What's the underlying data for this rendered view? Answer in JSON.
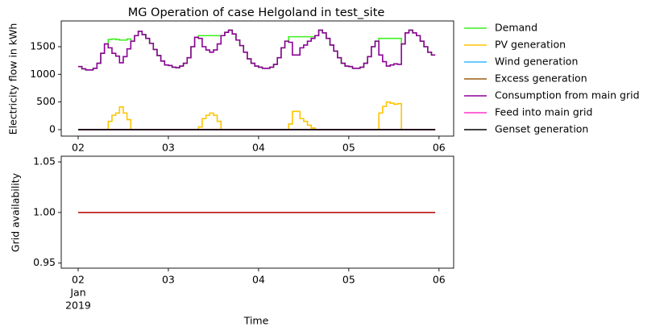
{
  "chart_data": [
    {
      "type": "line",
      "title": "MG Operation of case Helgoland in test_site",
      "ylabel": "Electricity flow in kWh",
      "x": [
        0,
        1,
        2,
        3,
        4,
        5,
        6,
        7,
        8,
        9,
        10,
        11,
        12,
        13,
        14,
        15,
        16,
        17,
        18,
        19,
        20,
        21,
        22,
        23,
        24,
        25,
        26,
        27,
        28,
        29,
        30,
        31,
        32,
        33,
        34,
        35,
        36,
        37,
        38,
        39,
        40,
        41,
        42,
        43,
        44,
        45,
        46,
        47,
        48,
        49,
        50,
        51,
        52,
        53,
        54,
        55,
        56,
        57,
        58,
        59,
        60,
        61,
        62,
        63,
        64,
        65,
        66,
        67,
        68,
        69,
        70,
        71,
        72,
        73,
        74,
        75,
        76,
        77,
        78,
        79,
        80,
        81,
        82,
        83,
        84,
        85,
        86,
        87,
        88,
        89,
        90,
        91,
        92,
        93,
        94,
        95
      ],
      "xlim": [
        -4.5,
        99.9
      ],
      "xticks": [
        {
          "value": 0,
          "label": "02"
        },
        {
          "value": 24,
          "label": "03"
        },
        {
          "value": 48,
          "label": "04"
        },
        {
          "value": 72,
          "label": "05"
        },
        {
          "value": 96,
          "label": "06"
        }
      ],
      "ylim": [
        -117,
        1966
      ],
      "yticks": [
        0,
        500,
        1000,
        1500
      ],
      "series": [
        {
          "name": "Demand",
          "color": "#3cf01e",
          "values": [
            1140,
            1100,
            1080,
            1080,
            1110,
            1200,
            1380,
            1550,
            1630,
            1640,
            1630,
            1620,
            1620,
            1640,
            1600,
            1700,
            1780,
            1720,
            1650,
            1560,
            1450,
            1340,
            1240,
            1170,
            1160,
            1130,
            1120,
            1150,
            1200,
            1300,
            1500,
            1670,
            1700,
            1700,
            1700,
            1700,
            1700,
            1700,
            1700,
            1760,
            1800,
            1730,
            1620,
            1520,
            1400,
            1280,
            1200,
            1150,
            1130,
            1110,
            1110,
            1130,
            1180,
            1300,
            1480,
            1600,
            1680,
            1680,
            1680,
            1680,
            1680,
            1680,
            1680,
            1700,
            1800,
            1750,
            1650,
            1530,
            1420,
            1300,
            1200,
            1150,
            1140,
            1110,
            1110,
            1130,
            1200,
            1320,
            1500,
            1600,
            1650,
            1650,
            1650,
            1650,
            1650,
            1650,
            1550,
            1750,
            1800,
            1750,
            1700,
            1600,
            1500,
            1400,
            1350,
            1350
          ]
        },
        {
          "name": "PV generation",
          "color": "#ffc400",
          "values": [
            0,
            0,
            0,
            0,
            0,
            0,
            0,
            0,
            150,
            260,
            300,
            410,
            300,
            180,
            0,
            0,
            0,
            0,
            0,
            0,
            0,
            0,
            0,
            0,
            0,
            0,
            0,
            0,
            0,
            0,
            0,
            0,
            50,
            200,
            260,
            300,
            260,
            150,
            0,
            0,
            0,
            0,
            0,
            0,
            0,
            0,
            0,
            0,
            0,
            0,
            0,
            0,
            0,
            0,
            0,
            0,
            100,
            330,
            330,
            200,
            150,
            80,
            30,
            0,
            0,
            0,
            0,
            0,
            0,
            0,
            0,
            0,
            0,
            0,
            0,
            0,
            0,
            0,
            0,
            0,
            300,
            420,
            500,
            480,
            460,
            470,
            0,
            0,
            0,
            0,
            0,
            0,
            0,
            0,
            0,
            0
          ]
        },
        {
          "name": "Wind generation",
          "color": "#33bbff",
          "values": [
            0,
            0,
            0,
            0,
            0,
            0,
            0,
            0,
            0,
            0,
            0,
            0,
            0,
            0,
            0,
            0,
            0,
            0,
            0,
            0,
            0,
            0,
            0,
            0,
            0,
            0,
            0,
            0,
            0,
            0,
            0,
            0,
            0,
            0,
            0,
            0,
            0,
            0,
            0,
            0,
            0,
            0,
            0,
            0,
            0,
            0,
            0,
            0,
            0,
            0,
            0,
            0,
            0,
            0,
            0,
            0,
            0,
            0,
            0,
            0,
            0,
            0,
            0,
            0,
            0,
            0,
            0,
            0,
            0,
            0,
            0,
            0,
            0,
            0,
            0,
            0,
            0,
            0,
            0,
            0,
            0,
            0,
            0,
            0,
            0,
            0,
            0,
            0,
            0,
            0,
            0,
            0,
            0,
            0,
            0,
            0
          ]
        },
        {
          "name": "Excess generation",
          "color": "#9c5b14",
          "values": [
            0,
            0,
            0,
            0,
            0,
            0,
            0,
            0,
            0,
            0,
            0,
            0,
            0,
            0,
            0,
            0,
            0,
            0,
            0,
            0,
            0,
            0,
            0,
            0,
            0,
            0,
            0,
            0,
            0,
            0,
            0,
            0,
            0,
            0,
            0,
            0,
            0,
            0,
            0,
            0,
            0,
            0,
            0,
            0,
            0,
            0,
            0,
            0,
            0,
            0,
            0,
            0,
            0,
            0,
            0,
            0,
            0,
            0,
            0,
            0,
            0,
            0,
            0,
            0,
            0,
            0,
            0,
            0,
            0,
            0,
            0,
            0,
            0,
            0,
            0,
            0,
            0,
            0,
            0,
            0,
            0,
            0,
            0,
            0,
            0,
            0,
            0,
            0,
            0,
            0,
            0,
            0,
            0,
            0,
            0,
            0
          ]
        },
        {
          "name": "Consumption from main grid",
          "color": "#8c0096",
          "values": [
            1140,
            1100,
            1080,
            1080,
            1110,
            1200,
            1380,
            1550,
            1480,
            1380,
            1330,
            1210,
            1320,
            1460,
            1600,
            1700,
            1780,
            1720,
            1650,
            1560,
            1450,
            1340,
            1240,
            1170,
            1160,
            1130,
            1120,
            1150,
            1200,
            1300,
            1500,
            1670,
            1650,
            1500,
            1440,
            1400,
            1440,
            1550,
            1700,
            1760,
            1800,
            1730,
            1620,
            1520,
            1400,
            1280,
            1200,
            1150,
            1130,
            1110,
            1110,
            1130,
            1180,
            1300,
            1480,
            1600,
            1580,
            1350,
            1350,
            1480,
            1530,
            1600,
            1650,
            1700,
            1800,
            1750,
            1650,
            1530,
            1420,
            1300,
            1200,
            1150,
            1140,
            1110,
            1110,
            1130,
            1200,
            1320,
            1500,
            1600,
            1350,
            1230,
            1150,
            1170,
            1190,
            1180,
            1550,
            1750,
            1800,
            1750,
            1700,
            1600,
            1500,
            1400,
            1350,
            1350
          ]
        },
        {
          "name": "Feed into main grid",
          "color": "#ff33cc",
          "values": [
            0,
            0,
            0,
            0,
            0,
            0,
            0,
            0,
            0,
            0,
            0,
            0,
            0,
            0,
            0,
            0,
            0,
            0,
            0,
            0,
            0,
            0,
            0,
            0,
            0,
            0,
            0,
            0,
            0,
            0,
            0,
            0,
            0,
            0,
            0,
            0,
            0,
            0,
            0,
            0,
            0,
            0,
            0,
            0,
            0,
            0,
            0,
            0,
            0,
            0,
            0,
            0,
            0,
            0,
            0,
            0,
            0,
            0,
            0,
            0,
            0,
            0,
            0,
            0,
            0,
            0,
            0,
            0,
            0,
            0,
            0,
            0,
            0,
            0,
            0,
            0,
            0,
            0,
            0,
            0,
            0,
            0,
            0,
            0,
            0,
            0,
            0,
            0,
            0,
            0,
            0,
            0,
            0,
            0,
            0,
            0
          ]
        },
        {
          "name": "Genset generation",
          "color": "#000000",
          "values": [
            0,
            0,
            0,
            0,
            0,
            0,
            0,
            0,
            0,
            0,
            0,
            0,
            0,
            0,
            0,
            0,
            0,
            0,
            0,
            0,
            0,
            0,
            0,
            0,
            0,
            0,
            0,
            0,
            0,
            0,
            0,
            0,
            0,
            0,
            0,
            0,
            0,
            0,
            0,
            0,
            0,
            0,
            0,
            0,
            0,
            0,
            0,
            0,
            0,
            0,
            0,
            0,
            0,
            0,
            0,
            0,
            0,
            0,
            0,
            0,
            0,
            0,
            0,
            0,
            0,
            0,
            0,
            0,
            0,
            0,
            0,
            0,
            0,
            0,
            0,
            0,
            0,
            0,
            0,
            0,
            0,
            0,
            0,
            0,
            0,
            0,
            0,
            0,
            0,
            0,
            0,
            0,
            0,
            0,
            0,
            0
          ]
        }
      ]
    },
    {
      "type": "line",
      "ylabel": "Grid availability",
      "xlabel": "Time",
      "x": [
        0,
        95
      ],
      "values": [
        1,
        1
      ],
      "color": "#b40000",
      "xlim": [
        -4.5,
        99.9
      ],
      "xticks": [
        {
          "value": 0,
          "label": "02"
        },
        {
          "value": 24,
          "label": "03"
        },
        {
          "value": 48,
          "label": "04"
        },
        {
          "value": 72,
          "label": "05"
        },
        {
          "value": 96,
          "label": "06"
        }
      ],
      "xtick_sublabels": [
        "Jan",
        "2019"
      ],
      "ylim": [
        0.945,
        1.0556
      ],
      "yticks": [
        {
          "value": 0.95,
          "label": "0.95"
        },
        {
          "value": 1,
          "label": "1.00"
        },
        {
          "value": 1.05,
          "label": "1.05"
        }
      ]
    }
  ]
}
